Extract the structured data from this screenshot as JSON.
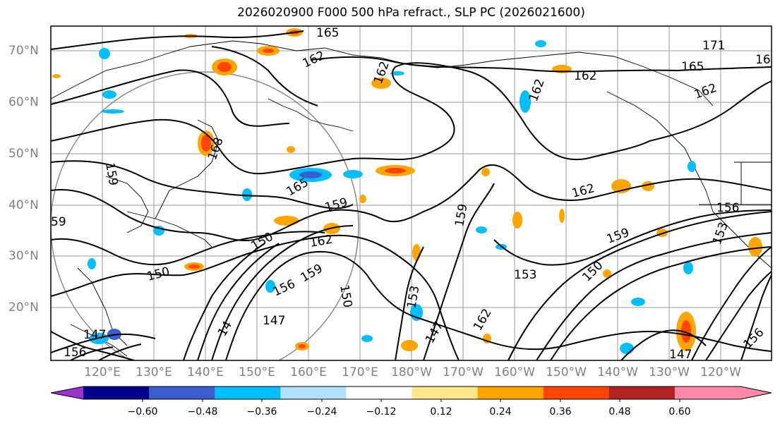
{
  "title": "2026020900 F000 500 hPa refract., SLP PC (2026021600)",
  "map": {
    "latitude_labels": [
      "70°N",
      "60°N",
      "50°N",
      "40°N",
      "30°N",
      "20°N"
    ],
    "longitude_labels": [
      "120°E",
      "130°E",
      "140°E",
      "150°E",
      "160°E",
      "170°E",
      "180°W",
      "170°W",
      "160°W",
      "150°W",
      "140°W",
      "130°W",
      "120°W"
    ],
    "contour_labels": [
      "165",
      "162",
      "171",
      "165",
      "16",
      "162",
      "162",
      "162",
      "162",
      "159",
      "159",
      "159",
      "168",
      "165",
      "159",
      "156",
      "153",
      "162",
      "162",
      "150",
      "150",
      "153",
      "156",
      "159",
      "150",
      "147",
      "147",
      "162",
      "153",
      "156",
      "150",
      "147",
      "156",
      "14",
      "147",
      "59"
    ]
  },
  "colorbar": {
    "tick_labels": [
      "−0.60",
      "−0.48",
      "−0.36",
      "−0.24",
      "−0.12",
      "0.12",
      "0.24",
      "0.36",
      "0.48",
      "0.60"
    ],
    "colors": [
      "#9932cc",
      "#00008b",
      "#3a5fcd",
      "#00bfff",
      "#b0e2ff",
      "#ffffff",
      "#ffe78a",
      "#ffa500",
      "#ff4500",
      "#b22222",
      "#ff88aa",
      "#ff88aa"
    ]
  }
}
